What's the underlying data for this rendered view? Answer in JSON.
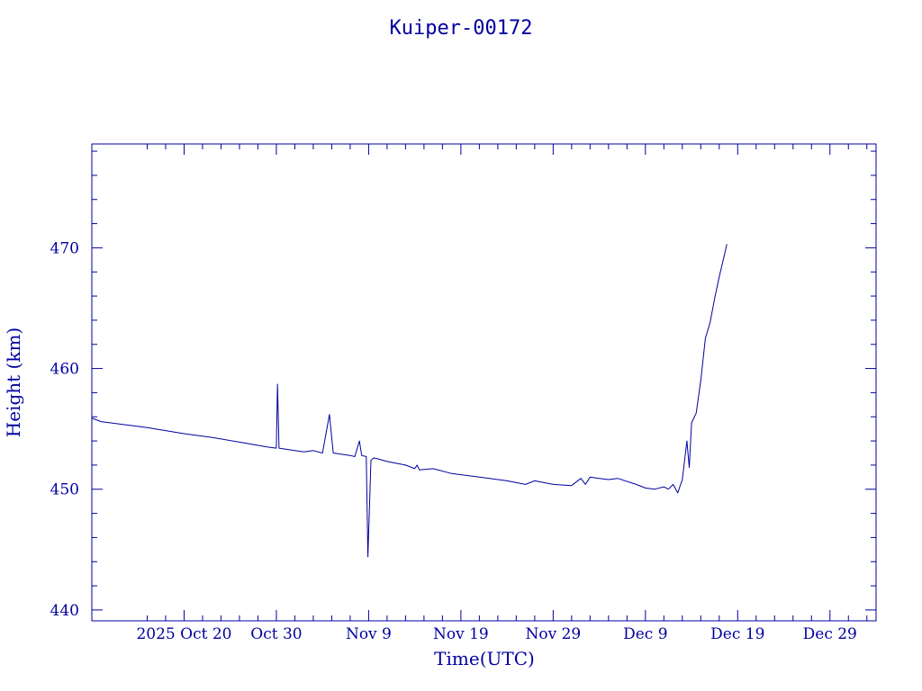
{
  "colors": {
    "ink": "#0000a0",
    "background": "#ffffff"
  },
  "chart_data": {
    "type": "line",
    "title": "Kuiper-00172",
    "xlabel": "Time(UTC)",
    "ylabel": "Height (km)",
    "x_ticks": [
      {
        "label": "2025 Oct 20",
        "date": "2025-10-20"
      },
      {
        "label": "Oct 30",
        "date": "2025-10-30"
      },
      {
        "label": "Nov  9",
        "date": "2025-11-09"
      },
      {
        "label": "Nov 19",
        "date": "2025-11-19"
      },
      {
        "label": "Nov 29",
        "date": "2025-11-29"
      },
      {
        "label": "Dec  9",
        "date": "2025-12-09"
      },
      {
        "label": "Dec 19",
        "date": "2025-12-19"
      },
      {
        "label": "Dec 29",
        "date": "2025-12-29"
      }
    ],
    "xlim": [
      "2025-10-10",
      "2026-01-03"
    ],
    "ylim": [
      439.1,
      478.6
    ],
    "y_ticks": [
      440,
      450,
      460,
      470
    ],
    "grid": false,
    "series": [
      {
        "color": "#0000a0",
        "points": [
          [
            "2025-10-10T00:00",
            455.9
          ],
          [
            "2025-10-11T00:00",
            455.6
          ],
          [
            "2025-10-13T00:00",
            455.4
          ],
          [
            "2025-10-16T00:00",
            455.1
          ],
          [
            "2025-10-20T00:00",
            454.6
          ],
          [
            "2025-10-23T00:00",
            454.3
          ],
          [
            "2025-10-26T00:00",
            453.9
          ],
          [
            "2025-10-29T00:00",
            453.5
          ],
          [
            "2025-10-30T00:00",
            453.4
          ],
          [
            "2025-10-30T03:00",
            458.7
          ],
          [
            "2025-10-30T07:00",
            453.4
          ],
          [
            "2025-11-01T00:00",
            453.2
          ],
          [
            "2025-11-02T00:00",
            453.1
          ],
          [
            "2025-11-03T00:00",
            453.2
          ],
          [
            "2025-11-04T00:00",
            453.0
          ],
          [
            "2025-11-04T18:00",
            456.2
          ],
          [
            "2025-11-05T04:00",
            453.0
          ],
          [
            "2025-11-06T00:00",
            452.9
          ],
          [
            "2025-11-07T00:00",
            452.8
          ],
          [
            "2025-11-07T12:00",
            452.7
          ],
          [
            "2025-11-08T00:00",
            454.0
          ],
          [
            "2025-11-08T06:00",
            452.8
          ],
          [
            "2025-11-08T18:00",
            452.7
          ],
          [
            "2025-11-08T22:00",
            444.4
          ],
          [
            "2025-11-09T06:00",
            452.4
          ],
          [
            "2025-11-09T14:00",
            452.6
          ],
          [
            "2025-11-11T00:00",
            452.3
          ],
          [
            "2025-11-13T00:00",
            452.0
          ],
          [
            "2025-11-14T00:00",
            451.7
          ],
          [
            "2025-11-14T06:00",
            452.0
          ],
          [
            "2025-11-14T12:00",
            451.6
          ],
          [
            "2025-11-16T00:00",
            451.7
          ],
          [
            "2025-11-18T00:00",
            451.3
          ],
          [
            "2025-11-21T00:00",
            451.0
          ],
          [
            "2025-11-24T00:00",
            450.7
          ],
          [
            "2025-11-26T00:00",
            450.4
          ],
          [
            "2025-11-27T00:00",
            450.7
          ],
          [
            "2025-11-29T00:00",
            450.4
          ],
          [
            "2025-12-01T00:00",
            450.3
          ],
          [
            "2025-12-02T00:00",
            450.9
          ],
          [
            "2025-12-02T12:00",
            450.4
          ],
          [
            "2025-12-03T00:00",
            451.0
          ],
          [
            "2025-12-04T00:00",
            450.9
          ],
          [
            "2025-12-05T00:00",
            450.8
          ],
          [
            "2025-12-06T00:00",
            450.9
          ],
          [
            "2025-12-08T00:00",
            450.4
          ],
          [
            "2025-12-09T00:00",
            450.1
          ],
          [
            "2025-12-10T00:00",
            450.0
          ],
          [
            "2025-12-11T00:00",
            450.2
          ],
          [
            "2025-12-11T12:00",
            450.0
          ],
          [
            "2025-12-12T00:00",
            450.4
          ],
          [
            "2025-12-12T12:00",
            449.7
          ],
          [
            "2025-12-13T00:00",
            450.8
          ],
          [
            "2025-12-13T12:00",
            454.0
          ],
          [
            "2025-12-13T18:00",
            451.8
          ],
          [
            "2025-12-14T00:00",
            455.5
          ],
          [
            "2025-12-14T12:00",
            456.3
          ],
          [
            "2025-12-15T00:00",
            459.0
          ],
          [
            "2025-12-15T12:00",
            462.5
          ],
          [
            "2025-12-16T00:00",
            463.8
          ],
          [
            "2025-12-16T12:00",
            465.8
          ],
          [
            "2025-12-17T00:00",
            467.6
          ],
          [
            "2025-12-17T12:00",
            469.2
          ],
          [
            "2025-12-17T20:00",
            470.3
          ]
        ]
      }
    ]
  }
}
